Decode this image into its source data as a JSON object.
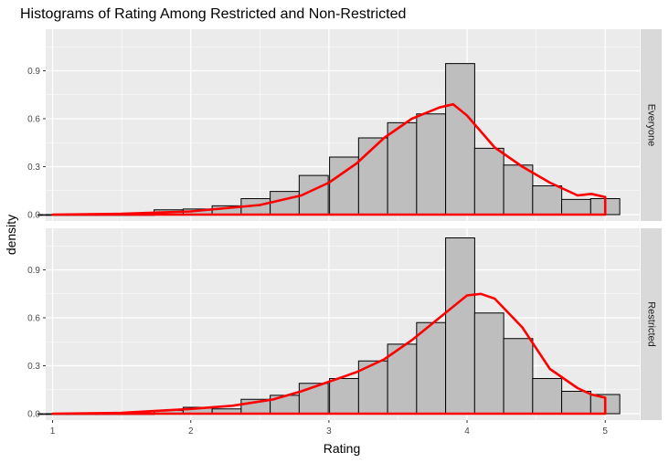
{
  "chart_data": {
    "type": "bar",
    "title": "Histograms of Rating Among Restricted and Non-Restricted",
    "xlabel": "Rating",
    "ylabel": "density",
    "xlim": [
      0.95,
      5.25
    ],
    "ylim": [
      -0.04,
      1.16
    ],
    "x_ticks": [
      "1",
      "2",
      "3",
      "4",
      "5"
    ],
    "y_ticks": [
      "0.0",
      "0.3",
      "0.6",
      "0.9"
    ],
    "bin_width": 0.2105,
    "bin_centers": [
      1.0,
      1.21,
      1.42,
      1.63,
      1.84,
      2.05,
      2.26,
      2.47,
      2.68,
      2.89,
      3.11,
      3.32,
      3.53,
      3.74,
      3.95,
      4.16,
      4.37,
      4.58,
      4.79,
      5.0
    ],
    "grid": true,
    "colors": {
      "panel_bg": "#ebebeb",
      "grid": "#ffffff",
      "bar_fill": "#bebebe",
      "bar_stroke": "#000000",
      "density_line": "#ff0000",
      "strip_bg": "#d9d9d9"
    },
    "panels": [
      {
        "strip_label": "Everyone",
        "bar_values": [
          0.0,
          0.0,
          0.0,
          0.0,
          0.03,
          0.035,
          0.055,
          0.1,
          0.145,
          0.245,
          0.36,
          0.48,
          0.575,
          0.63,
          0.945,
          0.415,
          0.31,
          0.18,
          0.095,
          0.1
        ],
        "density_curve": {
          "x": [
            1.0,
            1.5,
            2.0,
            2.5,
            2.8,
            3.0,
            3.2,
            3.4,
            3.6,
            3.8,
            3.9,
            4.0,
            4.2,
            4.4,
            4.6,
            4.8,
            4.9,
            5.0
          ],
          "y": [
            0.0,
            0.005,
            0.02,
            0.06,
            0.12,
            0.2,
            0.32,
            0.48,
            0.6,
            0.67,
            0.69,
            0.62,
            0.42,
            0.3,
            0.2,
            0.12,
            0.13,
            0.11
          ]
        }
      },
      {
        "strip_label": "Restricted",
        "bar_values": [
          0.0,
          0.0,
          0.0,
          0.0,
          0.02,
          0.04,
          0.03,
          0.09,
          0.115,
          0.19,
          0.22,
          0.33,
          0.435,
          0.57,
          1.1,
          0.63,
          0.47,
          0.22,
          0.14,
          0.12
        ],
        "density_curve": {
          "x": [
            1.0,
            1.5,
            2.0,
            2.3,
            2.6,
            2.8,
            3.0,
            3.2,
            3.4,
            3.6,
            3.8,
            4.0,
            4.1,
            4.2,
            4.4,
            4.6,
            4.8,
            4.9,
            5.0
          ],
          "y": [
            0.0,
            0.005,
            0.03,
            0.05,
            0.09,
            0.14,
            0.2,
            0.26,
            0.34,
            0.46,
            0.6,
            0.74,
            0.75,
            0.72,
            0.54,
            0.28,
            0.16,
            0.12,
            0.1
          ]
        }
      }
    ]
  }
}
